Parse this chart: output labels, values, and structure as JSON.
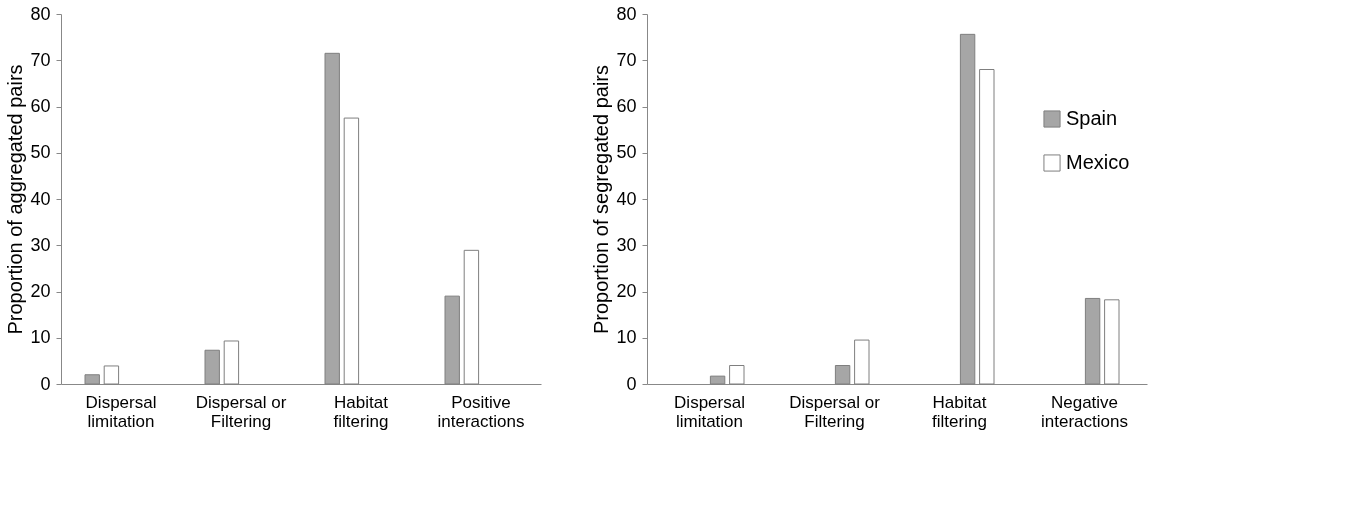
{
  "chart_data": [
    {
      "type": "bar",
      "ylabel": "Proportion of aggregated pairs",
      "categories": [
        "Dispersal\nlimitation",
        "Dispersal or\nFiltering",
        "Habitat\nfiltering",
        "Positive\ninteractions"
      ],
      "series": [
        {
          "color": "#a6a6a6",
          "values": [
            2.0,
            7.3,
            71.5,
            19.0
          ]
        },
        {
          "color": "#ffffff",
          "values": [
            3.9,
            9.3,
            57.5,
            28.9
          ]
        }
      ],
      "ylim": [
        0,
        80
      ],
      "yticks": [
        0,
        10,
        20,
        30,
        40,
        50,
        60,
        70,
        80
      ],
      "grid": false,
      "legend": false
    },
    {
      "type": "bar",
      "ylabel": "Proportion of segregated pairs",
      "categories": [
        "Dispersal\nlimitation",
        "Dispersal or\nFiltering",
        "Habitat\nfiltering",
        "Negative\ninteractions"
      ],
      "series": [
        {
          "name": "Spain",
          "color": "#a6a6a6",
          "values": [
            1.7,
            4.0,
            75.6,
            18.5
          ]
        },
        {
          "name": "Mexico",
          "color": "#ffffff",
          "values": [
            4.0,
            9.5,
            68.0,
            18.2
          ]
        }
      ],
      "ylim": [
        0,
        80
      ],
      "yticks": [
        0,
        10,
        20,
        30,
        40,
        50,
        60,
        70,
        80
      ],
      "grid": false,
      "legend": "right"
    }
  ]
}
